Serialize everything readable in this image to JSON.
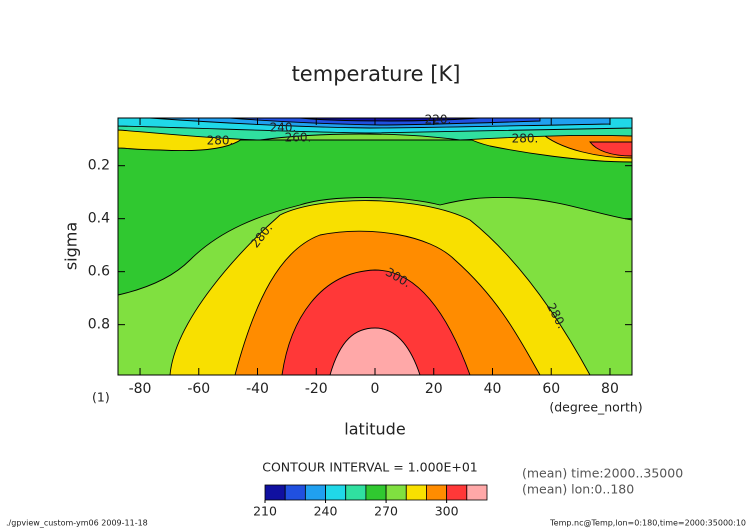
{
  "chart_data": {
    "type": "contour",
    "title": "temperature [K]",
    "ylabel": "sigma",
    "xlabel": "latitude",
    "y_unit": "(1)",
    "x_unit": "(degree_north)",
    "xlim": [
      -87.5,
      87.5
    ],
    "xticks": [
      -80,
      -60,
      -40,
      -20,
      0,
      20,
      40,
      60,
      80
    ],
    "ylim": [
      0.02,
      0.99
    ],
    "yticks": [
      0.2,
      0.4,
      0.6,
      0.8
    ],
    "levels": [
      210,
      220,
      230,
      240,
      250,
      260,
      270,
      280,
      290,
      300,
      310,
      320
    ],
    "colors": [
      "#1010a0",
      "#2050e0",
      "#20a0f0",
      "#20d8e8",
      "#30e0a0",
      "#30c830",
      "#80e040",
      "#f8e000",
      "#ff8c00",
      "#ff3838",
      "#ffa8a8"
    ],
    "colorbar_ticks": [
      210,
      240,
      270,
      300
    ],
    "contour_labels": [
      "240.",
      "220.",
      "280.",
      "260.",
      "280.",
      "280.",
      "300.",
      "280."
    ],
    "contour_interval": "CONTOUR INTERVAL = 1.000E+01",
    "notes": [
      "(mean) time:2000..35000",
      "(mean) lon:0..180"
    ],
    "footer_left": "./gpview_custom-ym06  2009-11-18",
    "footer_right": "Temp.nc@Temp,lon=0:180,time=2000:35000:10"
  }
}
